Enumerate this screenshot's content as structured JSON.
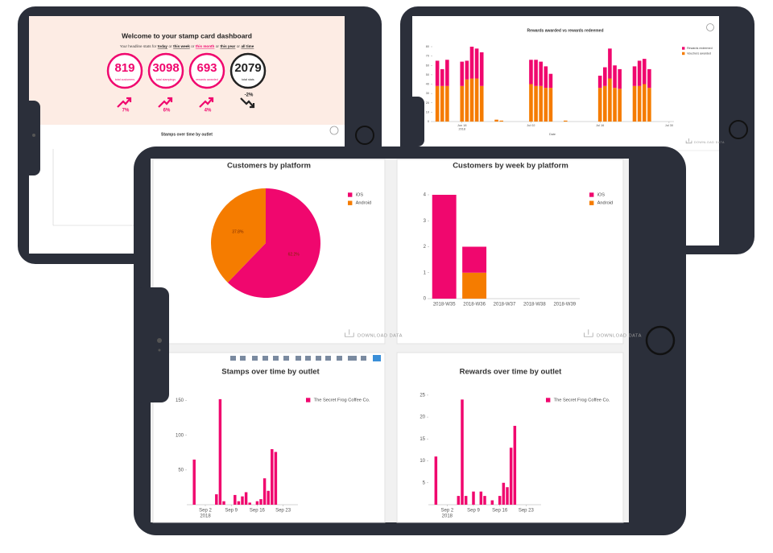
{
  "welcome": {
    "title": "Welcome to your stamp card dashboard",
    "headline": {
      "prefix": "Your headline stats for",
      "joiner": "or",
      "periods": [
        "today",
        "this week",
        "this month",
        "this year",
        "all time"
      ]
    },
    "stats": [
      {
        "value": 819,
        "label": "total customers",
        "change": "7%",
        "trend": "up"
      },
      {
        "value": 3098,
        "label": "total stampings",
        "change": "6%",
        "trend": "up"
      },
      {
        "value": 693,
        "label": "rewards awarded",
        "change": "4%",
        "trend": "up"
      },
      {
        "value": 2079,
        "label": "total stats",
        "change": "-2%",
        "trend": "down"
      }
    ],
    "section_title": "Stamps over time by outlet"
  },
  "download_label": "DOWNLOAD DATA",
  "chart_data": [
    {
      "type": "time-bar",
      "title": "Rewards awarded vs rewards redeemed",
      "x_label": "Date",
      "x": [
        "2018-06-13",
        "2018-06-14",
        "2018-06-15",
        "2018-06-18",
        "2018-06-19",
        "2018-06-20",
        "2018-06-21",
        "2018-06-22",
        "2018-06-25",
        "2018-06-26",
        "2018-07-02",
        "2018-07-03",
        "2018-07-04",
        "2018-07-05",
        "2018-07-06",
        "2018-07-09",
        "2018-07-16",
        "2018-07-17",
        "2018-07-18",
        "2018-07-19",
        "2018-07-20",
        "2018-07-23",
        "2018-07-24",
        "2018-07-25",
        "2018-07-26"
      ],
      "series": [
        {
          "name": "Vouchers awarded",
          "color": "#f57c00",
          "values": [
            38,
            38,
            38,
            38,
            45,
            46,
            46,
            38,
            2,
            1,
            40,
            38,
            38,
            36,
            36,
            1,
            36,
            38,
            46,
            36,
            35,
            38,
            38,
            40,
            36
          ]
        },
        {
          "name": "Rewards redeemed",
          "color": "#f0076e",
          "values": [
            27,
            18,
            28,
            26,
            20,
            34,
            32,
            36,
            0,
            0,
            26,
            28,
            26,
            23,
            15,
            0,
            13,
            20,
            32,
            24,
            21,
            21,
            27,
            27,
            20
          ]
        }
      ],
      "xlim": [
        "2018-06-12",
        "2018-07-31"
      ],
      "xticks": [
        {
          "value": "2018-06-18",
          "label": "Jun 18",
          "sublabel": "2018"
        },
        {
          "value": "2018-07-02",
          "label": "Jul 02"
        },
        {
          "value": "2018-07-16",
          "label": "Jul 16"
        },
        {
          "value": "2018-07-30",
          "label": "Jul 30"
        }
      ],
      "ylim": [
        0,
        80
      ],
      "yticks": [
        0,
        10,
        20,
        30,
        40,
        50,
        60,
        70,
        80
      ]
    },
    {
      "type": "pie",
      "title": "Customers by platform",
      "categories": [
        "iOS",
        "Android"
      ],
      "values": [
        62.2,
        37.8
      ],
      "value_labels": [
        "62.2%",
        "37.8%"
      ],
      "colors": [
        "#f0076e",
        "#f57c00"
      ]
    },
    {
      "type": "bar",
      "title": "Customers by week by platform",
      "categories": [
        "2018-W35",
        "2018-W36",
        "2018-W37",
        "2018-W38",
        "2018-W39"
      ],
      "series": [
        {
          "name": "Android",
          "color": "#f57c00",
          "values": [
            0,
            1,
            0,
            0,
            0
          ]
        },
        {
          "name": "iOS",
          "color": "#f0076e",
          "values": [
            4,
            1,
            0,
            0,
            0
          ]
        }
      ],
      "ylim": [
        0,
        4
      ],
      "yticks": [
        0,
        1,
        2,
        3,
        4
      ]
    },
    {
      "type": "time-bar",
      "title": "Stamps over time by outlet",
      "x": [
        "2018-08-30",
        "2018-09-05",
        "2018-09-06",
        "2018-09-07",
        "2018-09-10",
        "2018-09-11",
        "2018-09-12",
        "2018-09-13",
        "2018-09-14",
        "2018-09-16",
        "2018-09-17",
        "2018-09-18",
        "2018-09-19",
        "2018-09-20",
        "2018-09-21"
      ],
      "series": [
        {
          "name": "The Secret Frog Coffee Co.",
          "color": "#f0076e",
          "values": [
            65,
            15,
            152,
            5,
            14,
            5,
            12,
            18,
            3,
            5,
            8,
            38,
            20,
            80,
            76
          ]
        }
      ],
      "xlim": [
        "2018-08-28",
        "2018-09-27"
      ],
      "xticks": [
        {
          "value": "2018-09-02",
          "label": "Sep 2",
          "sublabel": "2018"
        },
        {
          "value": "2018-09-09",
          "label": "Sep 9"
        },
        {
          "value": "2018-09-16",
          "label": "Sep 16"
        },
        {
          "value": "2018-09-23",
          "label": "Sep 23"
        }
      ],
      "ylim": [
        0,
        160
      ],
      "yticks": [
        50,
        100,
        150
      ]
    },
    {
      "type": "time-bar",
      "title": "Rewards over time by outlet",
      "x": [
        "2018-08-30",
        "2018-09-05",
        "2018-09-06",
        "2018-09-07",
        "2018-09-09",
        "2018-09-11",
        "2018-09-12",
        "2018-09-14",
        "2018-09-16",
        "2018-09-17",
        "2018-09-18",
        "2018-09-19",
        "2018-09-20"
      ],
      "series": [
        {
          "name": "The Secret Frog Coffee Co.",
          "color": "#f0076e",
          "values": [
            11,
            2,
            24,
            2,
            3,
            3,
            2,
            1,
            2,
            5,
            4,
            13,
            18
          ]
        }
      ],
      "xlim": [
        "2018-08-28",
        "2018-09-27"
      ],
      "xticks": [
        {
          "value": "2018-09-02",
          "label": "Sep 2",
          "sublabel": "2018"
        },
        {
          "value": "2018-09-09",
          "label": "Sep 9"
        },
        {
          "value": "2018-09-16",
          "label": "Sep 16"
        },
        {
          "value": "2018-09-23",
          "label": "Sep 23"
        }
      ],
      "ylim": [
        0,
        27
      ],
      "yticks": [
        5,
        10,
        15,
        20,
        25
      ]
    }
  ]
}
